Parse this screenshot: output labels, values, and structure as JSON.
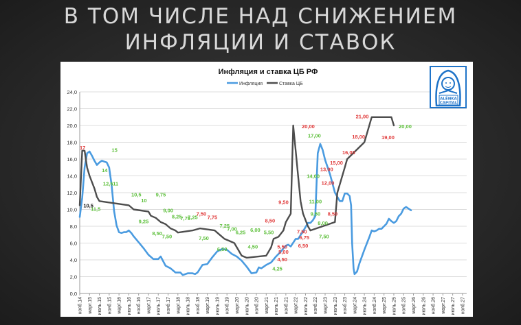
{
  "slide": {
    "title_line1": "В ТОМ ЧИСЛЕ НАД СНИЖЕНИЕМ",
    "title_line2": "ИНФЛЯЦИИ И СТАВОК"
  },
  "logo": {
    "text": "ALENKA CAPITAL"
  },
  "chart_data": {
    "type": "line",
    "title": "Инфляция и ставка ЦБ РФ",
    "legend_position": "top-center",
    "ylim": [
      0,
      24
    ],
    "yticks": [
      "0,0",
      "2,0",
      "4,0",
      "6,0",
      "8,0",
      "10,0",
      "12,0",
      "14,0",
      "16,0",
      "18,0",
      "20,0",
      "22,0",
      "24,0"
    ],
    "x_unit": "months since Nov 2014",
    "xticks": [
      "нояб.14",
      "март.15",
      "июль.15",
      "нояб.15",
      "март.16",
      "июль.16",
      "нояб.16",
      "март.17",
      "июль.17",
      "нояб.17",
      "март.18",
      "июль.18",
      "нояб.18",
      "март.19",
      "июль.19",
      "нояб.19",
      "март.20",
      "июль.20",
      "нояб.20",
      "март.21",
      "июль.21",
      "нояб.21",
      "март.22",
      "июль.22",
      "нояб.22",
      "март.23",
      "июль.23",
      "нояб.23",
      "март.24",
      "июль.24",
      "нояб.24",
      "март.25",
      "июль.25",
      "нояб.25",
      "март.26",
      "июль.26",
      "нояб.26",
      "март.27",
      "июль.27",
      "нояб.27"
    ],
    "series": [
      {
        "name": "Инфляция",
        "color": "#4a9be0",
        "step": false,
        "points": [
          [
            0,
            9.1
          ],
          [
            1,
            11.4
          ],
          [
            2,
            15.0
          ],
          [
            3,
            16.7
          ],
          [
            4,
            16.9
          ],
          [
            5,
            16.4
          ],
          [
            6,
            15.8
          ],
          [
            7,
            15.3
          ],
          [
            8,
            15.6
          ],
          [
            9,
            15.8
          ],
          [
            10,
            15.7
          ],
          [
            11,
            15.6
          ],
          [
            12,
            15.0
          ],
          [
            13,
            12.9
          ],
          [
            14,
            9.8
          ],
          [
            15,
            8.1
          ],
          [
            16,
            7.3
          ],
          [
            17,
            7.2
          ],
          [
            18,
            7.3
          ],
          [
            19,
            7.3
          ],
          [
            20,
            7.5
          ],
          [
            21,
            7.2
          ],
          [
            22,
            6.8
          ],
          [
            24,
            6.1
          ],
          [
            26,
            5.4
          ],
          [
            28,
            4.6
          ],
          [
            30,
            4.1
          ],
          [
            32,
            4.1
          ],
          [
            33,
            4.4
          ],
          [
            35,
            3.3
          ],
          [
            37,
            3.0
          ],
          [
            39,
            2.5
          ],
          [
            41,
            2.5
          ],
          [
            42,
            2.2
          ],
          [
            44,
            2.4
          ],
          [
            46,
            2.4
          ],
          [
            47,
            2.3
          ],
          [
            48,
            2.5
          ],
          [
            50,
            3.4
          ],
          [
            52,
            3.5
          ],
          [
            54,
            4.3
          ],
          [
            56,
            5.0
          ],
          [
            58,
            5.3
          ],
          [
            60,
            5.2
          ],
          [
            62,
            4.7
          ],
          [
            64,
            4.4
          ],
          [
            66,
            3.9
          ],
          [
            68,
            3.2
          ],
          [
            70,
            2.4
          ],
          [
            72,
            2.5
          ],
          [
            73,
            3.1
          ],
          [
            74,
            3.0
          ],
          [
            76,
            3.4
          ],
          [
            78,
            3.7
          ],
          [
            80,
            4.4
          ],
          [
            82,
            5.0
          ],
          [
            84,
            5.7
          ],
          [
            85,
            5.8
          ],
          [
            86,
            5.6
          ],
          [
            88,
            6.5
          ],
          [
            89,
            6.5
          ],
          [
            91,
            7.4
          ],
          [
            93,
            8.4
          ],
          [
            94,
            8.4
          ],
          [
            95,
            8.7
          ],
          [
            96,
            9.2
          ],
          [
            97,
            16.7
          ],
          [
            98,
            17.8
          ],
          [
            99,
            17.1
          ],
          [
            100,
            15.9
          ],
          [
            102,
            14.2
          ],
          [
            104,
            12.0
          ],
          [
            106,
            11.0
          ],
          [
            107,
            11.0
          ],
          [
            108,
            11.9
          ],
          [
            109,
            11.9
          ],
          [
            110,
            11.6
          ],
          [
            110.6,
            10.5
          ],
          [
            111,
            6.0
          ],
          [
            111.6,
            3.0
          ],
          [
            112,
            2.3
          ],
          [
            113,
            2.6
          ],
          [
            114,
            3.6
          ],
          [
            116,
            5.2
          ],
          [
            118,
            6.7
          ],
          [
            119,
            7.5
          ],
          [
            120,
            7.4
          ],
          [
            121,
            7.5
          ],
          [
            122,
            7.7
          ],
          [
            123,
            7.7
          ],
          [
            124,
            8.0
          ],
          [
            125,
            8.3
          ],
          [
            126,
            8.9
          ],
          [
            127,
            8.6
          ],
          [
            128,
            8.4
          ],
          [
            129,
            8.6
          ],
          [
            130,
            9.2
          ],
          [
            131,
            9.5
          ],
          [
            132,
            10.1
          ],
          [
            133,
            10.3
          ],
          [
            134,
            10.1
          ],
          [
            135,
            9.9
          ]
        ]
      },
      {
        "name": "Ставка ЦБ",
        "color": "#4d4d4d",
        "step": true,
        "points": [
          [
            0,
            10.5
          ],
          [
            1,
            17
          ],
          [
            2,
            17
          ],
          [
            3,
            15
          ],
          [
            4,
            14
          ],
          [
            6,
            12.5
          ],
          [
            7,
            11.5
          ],
          [
            8,
            11
          ],
          [
            20,
            10.5
          ],
          [
            22,
            10
          ],
          [
            28,
            9.75
          ],
          [
            29,
            9.25
          ],
          [
            31,
            9.0
          ],
          [
            33,
            8.5
          ],
          [
            35,
            8.25
          ],
          [
            37,
            7.75
          ],
          [
            39,
            7.5
          ],
          [
            40,
            7.25
          ],
          [
            46,
            7.5
          ],
          [
            49,
            7.75
          ],
          [
            55,
            7.5
          ],
          [
            56,
            7.25
          ],
          [
            57,
            7.0
          ],
          [
            59,
            6.5
          ],
          [
            61,
            6.25
          ],
          [
            63,
            6.0
          ],
          [
            64,
            5.5
          ],
          [
            66,
            4.5
          ],
          [
            68,
            4.25
          ],
          [
            76,
            4.5
          ],
          [
            77,
            5.0
          ],
          [
            78,
            5.5
          ],
          [
            79,
            6.5
          ],
          [
            81,
            6.75
          ],
          [
            83,
            7.5
          ],
          [
            84,
            8.5
          ],
          [
            86,
            9.5
          ],
          [
            87,
            20
          ],
          [
            88,
            17
          ],
          [
            89,
            14
          ],
          [
            90,
            11
          ],
          [
            91,
            9.5
          ],
          [
            93,
            8.0
          ],
          [
            94,
            7.5
          ],
          [
            104,
            8.5
          ],
          [
            105,
            12
          ],
          [
            106,
            13
          ],
          [
            108,
            15
          ],
          [
            109,
            16
          ],
          [
            116,
            18
          ],
          [
            117,
            19
          ],
          [
            119,
            21
          ],
          [
            127,
            21
          ],
          [
            128,
            20
          ]
        ]
      }
    ],
    "annotations": [
      {
        "text": "17",
        "color": "#e03a3a",
        "at": [
          0,
          17.4
        ]
      },
      {
        "text": "15",
        "color": "#5cbf3a",
        "at": [
          13,
          17.1
        ]
      },
      {
        "text": "14",
        "color": "#5cbf3a",
        "at": [
          9,
          14.7
        ]
      },
      {
        "text": "12,5",
        "color": "#5cbf3a",
        "at": [
          9.5,
          13.1
        ]
      },
      {
        "text": "11",
        "color": "#5cbf3a",
        "at": [
          13.5,
          13.1
        ]
      },
      {
        "text": "10,5",
        "color": "#111111",
        "at": [
          1.5,
          10.5
        ]
      },
      {
        "text": "11,5",
        "color": "#5cbf3a",
        "at": [
          4.5,
          10.1
        ]
      },
      {
        "text": "10,5",
        "color": "#5cbf3a",
        "at": [
          21,
          11.8
        ]
      },
      {
        "text": "10",
        "color": "#5cbf3a",
        "at": [
          25,
          11.1
        ]
      },
      {
        "text": "9,75",
        "color": "#5cbf3a",
        "at": [
          31,
          11.8
        ]
      },
      {
        "text": "9,00",
        "color": "#5cbf3a",
        "at": [
          34,
          9.9
        ]
      },
      {
        "text": "9,25",
        "color": "#5cbf3a",
        "at": [
          24,
          8.6
        ]
      },
      {
        "text": "8,25",
        "color": "#5cbf3a",
        "at": [
          37.5,
          9.2
        ]
      },
      {
        "text": "7,75",
        "color": "#5cbf3a",
        "at": [
          41,
          9.0
        ]
      },
      {
        "text": "7,25",
        "color": "#5cbf3a",
        "at": [
          44,
          9.1
        ]
      },
      {
        "text": "7,50",
        "color": "#e03a3a",
        "at": [
          47.5,
          9.5
        ]
      },
      {
        "text": "7,75",
        "color": "#e03a3a",
        "at": [
          52,
          9.1
        ]
      },
      {
        "text": "8,50",
        "color": "#5cbf3a",
        "at": [
          29.5,
          7.2
        ]
      },
      {
        "text": "7,50",
        "color": "#5cbf3a",
        "at": [
          33.5,
          6.8
        ]
      },
      {
        "text": "7,25",
        "color": "#5cbf3a",
        "at": [
          57,
          8.1
        ]
      },
      {
        "text": "7,00",
        "color": "#5cbf3a",
        "at": [
          60,
          7.7
        ]
      },
      {
        "text": "7,50",
        "color": "#5cbf3a",
        "at": [
          48.5,
          6.6
        ]
      },
      {
        "text": "6,50",
        "color": "#5cbf3a",
        "at": [
          56,
          5.3
        ]
      },
      {
        "text": "6,25",
        "color": "#5cbf3a",
        "at": [
          63.5,
          7.3
        ]
      },
      {
        "text": "6,00",
        "color": "#5cbf3a",
        "at": [
          69.5,
          7.6
        ]
      },
      {
        "text": "5,50",
        "color": "#5cbf3a",
        "at": [
          75,
          7.3
        ]
      },
      {
        "text": "4,50",
        "color": "#5cbf3a",
        "at": [
          68.5,
          5.6
        ]
      },
      {
        "text": "4,25",
        "color": "#5cbf3a",
        "at": [
          78.5,
          3.0
        ]
      },
      {
        "text": "4,50",
        "color": "#e03a3a",
        "at": [
          80.5,
          4.1
        ]
      },
      {
        "text": "5,00",
        "color": "#e03a3a",
        "at": [
          81,
          5.0
        ]
      },
      {
        "text": "5,50",
        "color": "#e03a3a",
        "at": [
          80.5,
          5.6
        ]
      },
      {
        "text": "6,50",
        "color": "#e03a3a",
        "at": [
          89,
          5.7
        ]
      },
      {
        "text": "6,75",
        "color": "#e03a3a",
        "at": [
          89.5,
          6.7
        ]
      },
      {
        "text": "7,50",
        "color": "#e03a3a",
        "at": [
          88.5,
          7.4
        ]
      },
      {
        "text": "8,50",
        "color": "#e03a3a",
        "at": [
          75.5,
          8.7
        ]
      },
      {
        "text": "9,50",
        "color": "#e03a3a",
        "at": [
          81,
          10.9
        ]
      },
      {
        "text": "20,00",
        "color": "#e03a3a",
        "at": [
          90.5,
          19.9
        ]
      },
      {
        "text": "17,00",
        "color": "#5cbf3a",
        "at": [
          93,
          18.8
        ]
      },
      {
        "text": "14,00",
        "color": "#5cbf3a",
        "at": [
          92.5,
          14.0
        ]
      },
      {
        "text": "11,00",
        "color": "#5cbf3a",
        "at": [
          93.5,
          11.0
        ]
      },
      {
        "text": "9,50",
        "color": "#5cbf3a",
        "at": [
          94,
          9.5
        ]
      },
      {
        "text": "8,00",
        "color": "#5cbf3a",
        "at": [
          97,
          8.4
        ]
      },
      {
        "text": "7,50",
        "color": "#5cbf3a",
        "at": [
          97.5,
          6.8
        ]
      },
      {
        "text": "8,50",
        "color": "#e03a3a",
        "at": [
          101,
          9.5
        ]
      },
      {
        "text": "12,00",
        "color": "#e03a3a",
        "at": [
          98.5,
          13.2
        ]
      },
      {
        "text": "13,00",
        "color": "#e03a3a",
        "at": [
          98,
          14.8
        ]
      },
      {
        "text": "15,00",
        "color": "#e03a3a",
        "at": [
          102,
          15.6
        ]
      },
      {
        "text": "16,00",
        "color": "#e03a3a",
        "at": [
          107,
          16.8
        ]
      },
      {
        "text": "18,00",
        "color": "#e03a3a",
        "at": [
          111,
          18.7
        ]
      },
      {
        "text": "19,00",
        "color": "#e03a3a",
        "at": [
          123,
          18.6
        ]
      },
      {
        "text": "21,00",
        "color": "#e03a3a",
        "at": [
          112.5,
          21.1
        ]
      },
      {
        "text": "20,00",
        "color": "#5cbf3a",
        "at": [
          130,
          19.9
        ]
      }
    ]
  }
}
